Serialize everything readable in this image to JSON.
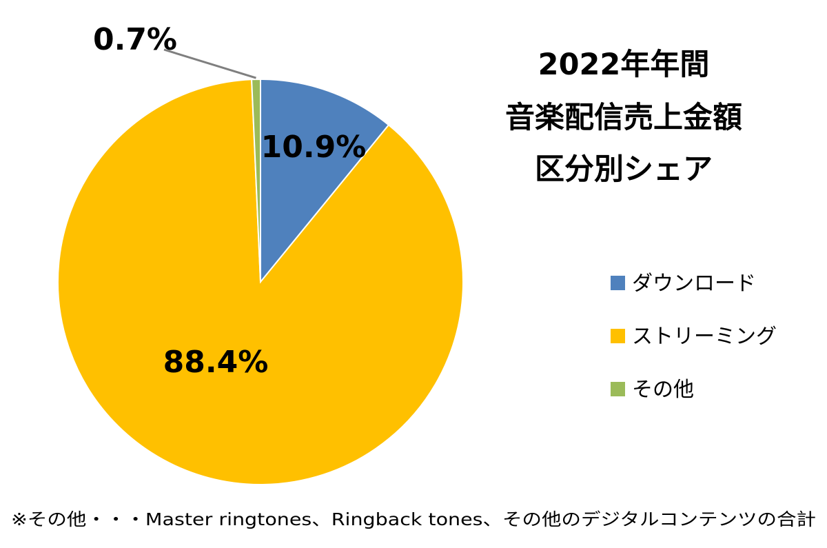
{
  "chart_data": {
    "type": "pie",
    "title": [
      "2022年年間",
      "音楽配信売上金額",
      "区分別シェア"
    ],
    "categories": [
      "ダウンロード",
      "ストリーミング",
      "その他"
    ],
    "values": [
      10.9,
      88.4,
      0.7
    ],
    "value_labels": [
      "10.9%",
      "88.4%",
      "0.7%"
    ],
    "colors": [
      "#4F81BD",
      "#FFC000",
      "#9BBB59"
    ],
    "start_angle": "12 o'clock, clockwise",
    "legend": "right",
    "footnote": "※その他・・・Master ringtones、Ringback tones、その他のデジタルコンテンツの合計"
  }
}
